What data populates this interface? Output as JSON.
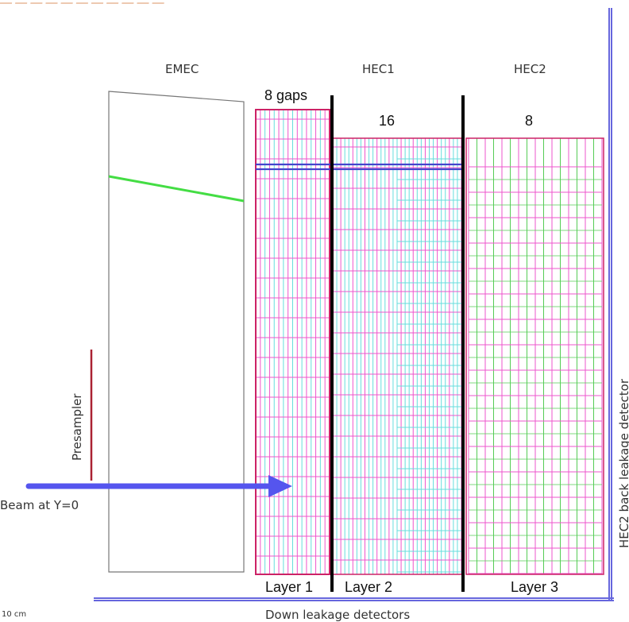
{
  "labels": {
    "emec": "EMEC",
    "hec1": "HEC1",
    "hec2": "HEC2",
    "gaps_first": "8 gaps",
    "gaps_hec1": "16",
    "gaps_hec2": "8",
    "presampler": "Presampler",
    "beam": "Beam at Y=0",
    "layer1": "Layer 1",
    "layer2": "Layer 2",
    "layer3": "Layer 3",
    "scale": "10 cm",
    "down_leakage": "Down leakage detectors",
    "back_leakage": "HEC2 back leakage detector"
  },
  "colors": {
    "emec_outline": "#666666",
    "green_line": "#44dd44",
    "presampler": "#aa2233",
    "beam_arrow": "#5555ee",
    "pink": "#ee55cc",
    "cyan": "#66dddd",
    "magenta_frame": "#cc2266",
    "blue_line": "#4444cc",
    "green_plate": "#55cc55",
    "divider": "#000000",
    "leakage": "#6666dd"
  },
  "gaps": {
    "first": 8,
    "hec1": 16,
    "hec2": 8
  }
}
